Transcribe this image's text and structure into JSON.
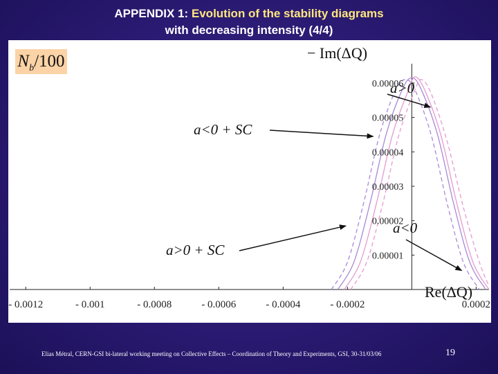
{
  "slide": {
    "title_prefix": "APPENDIX 1: ",
    "title_highlight": "Evolution of the stability diagrams",
    "title_line2": "with decreasing intensity (4/4)",
    "footer": "Elias Métral, CERN-GSI bi-lateral working meeting on Collective Effects – Coordination of Theory and Experiments, GSI, 30-31/03/06",
    "page_number": "19"
  },
  "intensity_box": {
    "symbol": "N",
    "subscript": "b",
    "suffix": "/100"
  },
  "colors": {
    "background": "#2a1a72",
    "title_highlight": "#ffe680",
    "intensity_box": "#fcd3a6",
    "curve_pink": "#e59ad0",
    "curve_purple": "#a888d8"
  },
  "chart_data": {
    "type": "line",
    "xlabel": "Re(ΔQ)",
    "ylabel": "− Im(ΔQ)",
    "xlim": [
      -0.00125,
      0.00024
    ],
    "ylim": [
      0,
      6.4e-05
    ],
    "x_ticks": [
      {
        "value": -0.0012,
        "label": "- 0.0012"
      },
      {
        "value": -0.001,
        "label": "- 0.001"
      },
      {
        "value": -0.0008,
        "label": "- 0.0008"
      },
      {
        "value": -0.0006,
        "label": "- 0.0006"
      },
      {
        "value": -0.0004,
        "label": "- 0.0004"
      },
      {
        "value": -0.0002,
        "label": "- 0.0002"
      },
      {
        "value": 0.0002,
        "label": "0.0002"
      }
    ],
    "y_ticks": [
      {
        "value": 1e-05,
        "label": "0.00001"
      },
      {
        "value": 2e-05,
        "label": "0.00002"
      },
      {
        "value": 3e-05,
        "label": "0.00003"
      },
      {
        "value": 4e-05,
        "label": "0.00004"
      },
      {
        "value": 5e-05,
        "label": "0.00005"
      },
      {
        "value": 6e-05,
        "label": "0.00006"
      }
    ],
    "series": [
      {
        "color": "#a888d8",
        "dash": "none",
        "x": [
          -0.00023,
          -0.00018,
          -0.00013,
          -8e-05,
          -3e-05,
          0.0,
          3e-05,
          8e-05,
          0.00013,
          0.00018,
          0.00023
        ],
        "y": [
          0,
          8e-06,
          2.5e-05,
          4.5e-05,
          5.8e-05,
          6.15e-05,
          5.8e-05,
          4.5e-05,
          2.5e-05,
          8e-06,
          0
        ]
      },
      {
        "color": "#e59ad0",
        "dash": "none",
        "x": [
          -0.00021,
          -0.00016,
          -0.00011,
          -6e-05,
          -1e-05,
          1e-05,
          4e-05,
          9e-05,
          0.00014,
          0.00019,
          0.00024
        ],
        "y": [
          0,
          8e-06,
          2.5e-05,
          4.5e-05,
          5.8e-05,
          6.18e-05,
          5.8e-05,
          4.5e-05,
          2.5e-05,
          8e-06,
          0
        ]
      },
      {
        "color": "#e59ad0",
        "dash": "6,4",
        "x": [
          -0.00019,
          -0.00014,
          -9e-05,
          -4e-05,
          1e-05,
          3e-05,
          6e-05,
          0.00011,
          0.00016,
          0.00021,
          0.00024
        ],
        "y": [
          0,
          8e-06,
          2.5e-05,
          4.5e-05,
          5.8e-05,
          6.1e-05,
          5.7e-05,
          4.3e-05,
          2.4e-05,
          8e-06,
          1e-06
        ]
      },
      {
        "color": "#a888d8",
        "dash": "6,4",
        "x": [
          -0.00025,
          -0.0002,
          -0.00015,
          -0.0001,
          -5e-05,
          -2e-05,
          1e-05,
          6e-05,
          0.00011,
          0.00016,
          0.00021
        ],
        "y": [
          0,
          8e-06,
          2.5e-05,
          4.5e-05,
          5.8e-05,
          6.1e-05,
          5.8e-05,
          4.5e-05,
          2.5e-05,
          8e-06,
          0
        ]
      }
    ],
    "annotations": [
      {
        "label": "a>0",
        "target": [
          5.8e-05,
          5.3e-05
        ]
      },
      {
        "label": "a<0 + SC",
        "target": [
          -0.00012,
          4.45e-05
        ]
      },
      {
        "label": "a<0",
        "target": [
          0.000155,
          5.5e-06
        ]
      },
      {
        "label": "a>0 + SC",
        "target": [
          -0.000205,
          1.85e-05
        ]
      }
    ]
  }
}
